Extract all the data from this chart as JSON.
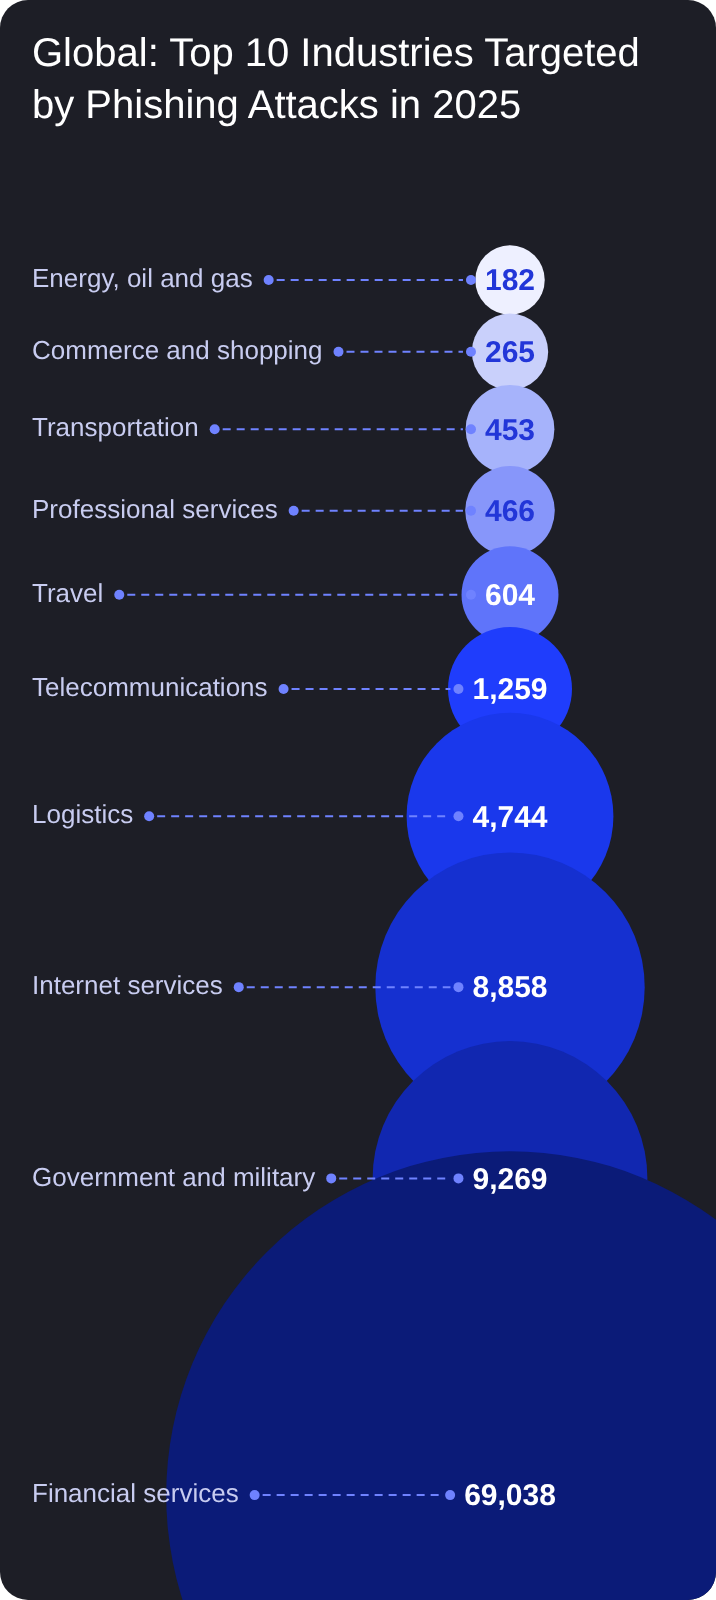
{
  "chart_data": {
    "type": "other",
    "title": "Global: Top 10 Industries Targeted by Phishing Attacks in 2025",
    "categories": [
      "Energy, oil and gas",
      "Commerce and shopping",
      "Transportation",
      "Professional services",
      "Travel",
      "Telecommunications",
      "Logistics",
      "Internet services",
      "Government and military",
      "Financial services"
    ],
    "values": [
      182,
      265,
      453,
      466,
      604,
      1259,
      4744,
      8858,
      9269,
      69038
    ],
    "colors": [
      "#eef0ff",
      "#c9d0fb",
      "#a6b3fb",
      "#8796fa",
      "#5f74fa",
      "#1f3dfc",
      "#1a38ec",
      "#1530d0",
      "#1127b0",
      "#0b1b78"
    ],
    "value_labels": [
      "182",
      "265",
      "453",
      "466",
      "604",
      "1,259",
      "4,744",
      "8,858",
      "9,269",
      "69,038"
    ],
    "legend": false
  }
}
